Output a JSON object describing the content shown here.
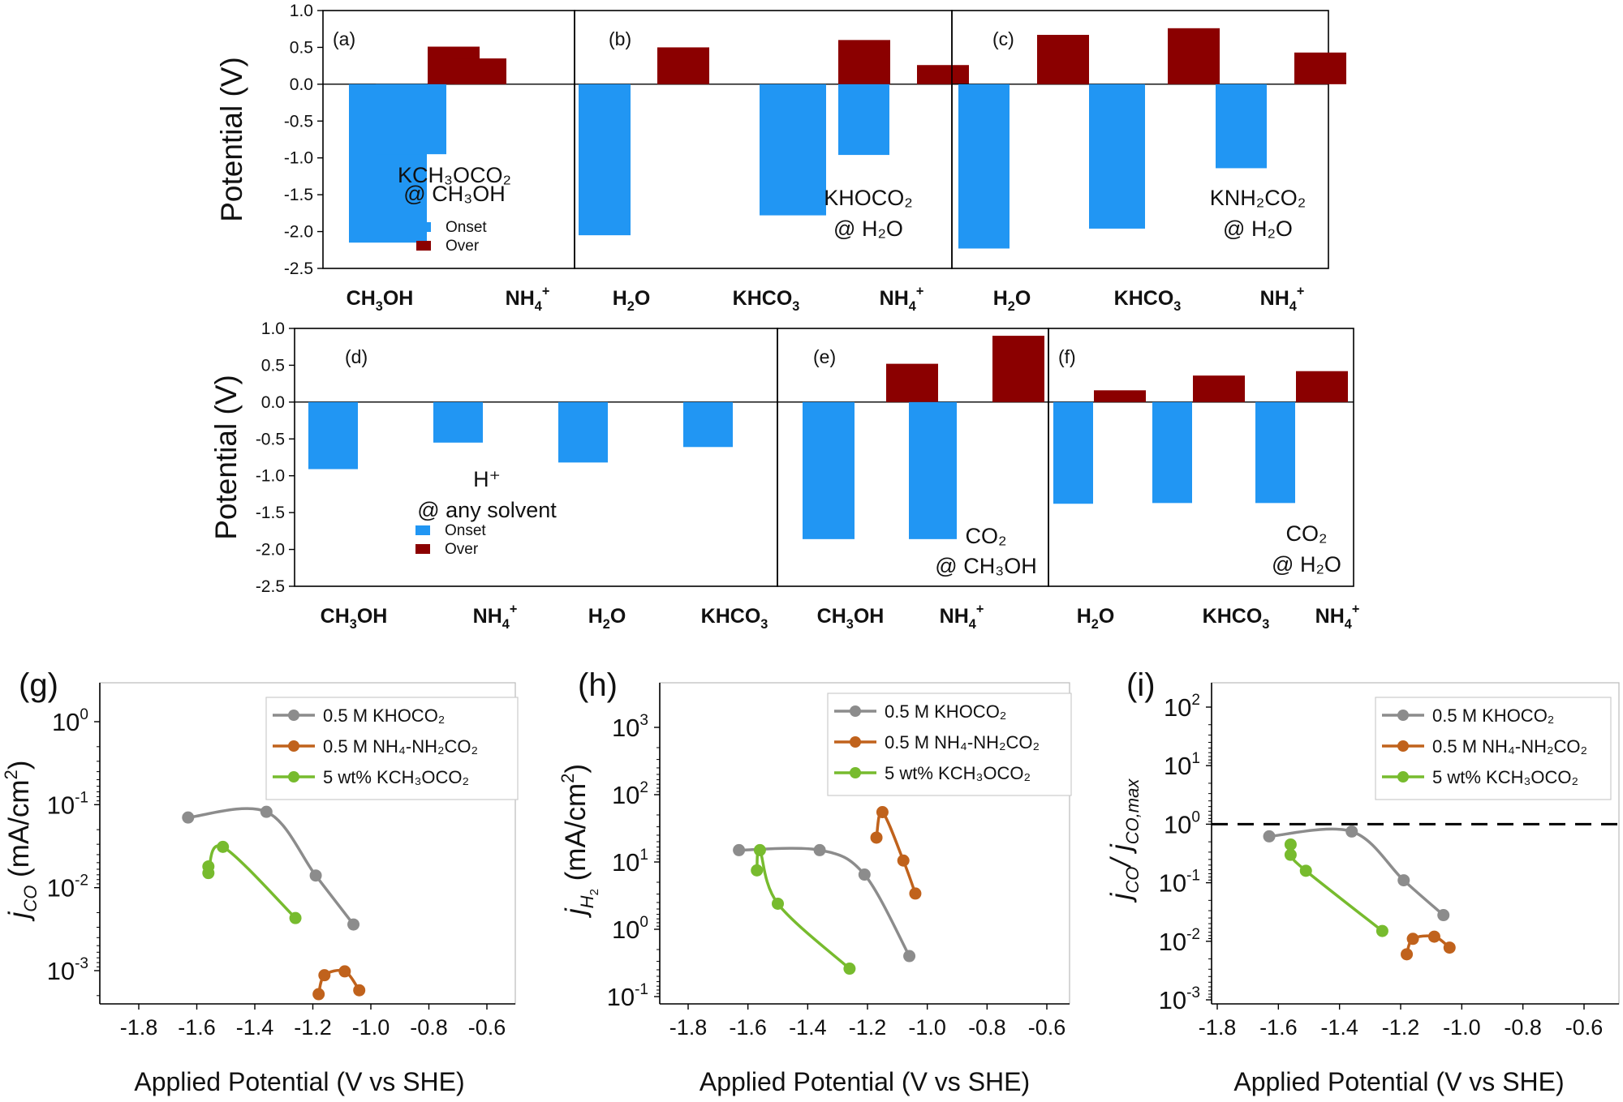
{
  "colors": {
    "onset": "#2196f3",
    "over": "#8b0000",
    "khoco2": "#8c8c8c",
    "nh4": "#c0621c",
    "kch3oco2": "#77bb2e",
    "axis": "#000000",
    "dashed": "#000000"
  },
  "chart_data": [
    {
      "panel": "(a)",
      "type": "bar",
      "ylabel": "Potential (V)",
      "ylim": [
        -2.5,
        1.0
      ],
      "yticks": [
        "1.0",
        "0.5",
        "0.0",
        "-0.5",
        "-1.0",
        "-1.5",
        "-2.0",
        "-2.5"
      ],
      "categories": [
        "CH3OH",
        "NH4+"
      ],
      "category_labels": [
        {
          "base": "CH",
          "sub": "3",
          "tail": "OH",
          "sup": ""
        },
        {
          "base": "NH",
          "sub": "4",
          "tail": "",
          "sup": "+"
        }
      ],
      "series": [
        {
          "name": "Onset",
          "values": [
            -2.15,
            -0.95
          ]
        },
        {
          "name": "Over",
          "values": [
            0.51,
            0.35
          ]
        }
      ],
      "annotation": [
        "KCH₃OCO₂",
        "@ CH₃OH"
      ],
      "legend": [
        "Onset",
        "Over"
      ]
    },
    {
      "panel": "(b)",
      "type": "bar",
      "ylim": [
        -2.5,
        1.0
      ],
      "categories": [
        "H2O",
        "KHCO3",
        "NH4+"
      ],
      "category_labels": [
        {
          "base": "H",
          "sub": "2",
          "tail": "O",
          "sup": ""
        },
        {
          "base": "KHCO",
          "sub": "3",
          "tail": "",
          "sup": ""
        },
        {
          "base": "NH",
          "sub": "4",
          "tail": "",
          "sup": "+"
        }
      ],
      "series": [
        {
          "name": "Onset",
          "values": [
            -2.05,
            -1.78,
            -0.96
          ]
        },
        {
          "name": "Over",
          "values": [
            0.5,
            0.6,
            0.26
          ]
        }
      ],
      "annotation": [
        "KHOCO₂",
        "@ H₂O"
      ]
    },
    {
      "panel": "(c)",
      "type": "bar",
      "ylim": [
        -2.5,
        1.0
      ],
      "categories": [
        "H2O",
        "KHCO3",
        "NH4+"
      ],
      "category_labels": [
        {
          "base": "H",
          "sub": "2",
          "tail": "O",
          "sup": ""
        },
        {
          "base": "KHCO",
          "sub": "3",
          "tail": "",
          "sup": ""
        },
        {
          "base": "NH",
          "sub": "4",
          "tail": "",
          "sup": "+"
        }
      ],
      "series": [
        {
          "name": "Onset",
          "values": [
            -2.23,
            -1.96,
            -1.14
          ]
        },
        {
          "name": "Over",
          "values": [
            0.67,
            0.76,
            0.43
          ]
        }
      ],
      "annotation": [
        "KNH₂CO₂",
        "@ H₂O"
      ]
    },
    {
      "panel": "(d)",
      "type": "bar",
      "ylabel": "Potential (V)",
      "ylim": [
        -2.5,
        1.0
      ],
      "yticks": [
        "1.0",
        "0.5",
        "0.0",
        "-0.5",
        "-1.0",
        "-1.5",
        "-2.0",
        "-2.5"
      ],
      "categories": [
        "CH3OH",
        "NH4+",
        "H2O",
        "KHCO3"
      ],
      "category_labels": [
        {
          "base": "CH",
          "sub": "3",
          "tail": "OH",
          "sup": ""
        },
        {
          "base": "NH",
          "sub": "4",
          "tail": "",
          "sup": "+"
        },
        {
          "base": "H",
          "sub": "2",
          "tail": "O",
          "sup": ""
        },
        {
          "base": "KHCO",
          "sub": "3",
          "tail": "",
          "sup": ""
        }
      ],
      "series": [
        {
          "name": "Onset",
          "values": [
            -0.91,
            -0.55,
            -0.82,
            -0.61
          ]
        }
      ],
      "annotation": [
        "H⁺",
        "@ any solvent"
      ],
      "legend": [
        "Onset",
        "Over"
      ]
    },
    {
      "panel": "(e)",
      "type": "bar",
      "ylim": [
        -2.5,
        1.0
      ],
      "categories": [
        "CH3OH",
        "NH4+"
      ],
      "category_labels": [
        {
          "base": "CH",
          "sub": "3",
          "tail": "OH",
          "sup": ""
        },
        {
          "base": "NH",
          "sub": "4",
          "tail": "",
          "sup": "+"
        }
      ],
      "series": [
        {
          "name": "Onset",
          "values": [
            -1.86,
            -1.86
          ]
        },
        {
          "name": "Over",
          "values": [
            0.52,
            0.9
          ]
        }
      ],
      "annotation": [
        "CO₂",
        "@ CH₃OH"
      ]
    },
    {
      "panel": "(f)",
      "type": "bar",
      "ylim": [
        -2.5,
        1.0
      ],
      "categories": [
        "H2O",
        "KHCO3",
        "NH4+"
      ],
      "category_labels": [
        {
          "base": "H",
          "sub": "2",
          "tail": "O",
          "sup": ""
        },
        {
          "base": "KHCO",
          "sub": "3",
          "tail": "",
          "sup": ""
        },
        {
          "base": "NH",
          "sub": "4",
          "tail": "",
          "sup": "+"
        }
      ],
      "series": [
        {
          "name": "Onset",
          "values": [
            -1.38,
            -1.37,
            -1.37
          ]
        },
        {
          "name": "Over",
          "values": [
            0.16,
            0.36,
            0.42
          ]
        }
      ],
      "annotation": [
        "CO₂",
        "@ H₂O"
      ]
    },
    {
      "panel": "(g)",
      "type": "scatter",
      "yscale": "log",
      "ylim": [
        0.0005,
        2
      ],
      "xlim": [
        -1.8,
        -0.5
      ],
      "xticks": [
        -1.8,
        -1.6,
        -1.4,
        -1.2,
        -1.0,
        -0.8,
        -0.6
      ],
      "yticks_exp": [
        0,
        -1,
        -2,
        -3
      ],
      "xlabel": "Applied Potential (V vs SHE)",
      "ylabel": {
        "base": "j",
        "sub": "CO",
        "tail": " (mA/cm",
        "sup": "2",
        "end": ")"
      },
      "series": [
        {
          "name": "0.5 M KHOCO₂",
          "x": [
            -1.63,
            -1.36,
            -1.19,
            -1.06
          ],
          "y": [
            0.07,
            0.082,
            0.014,
            0.0036
          ]
        },
        {
          "name": "0.5 M NH₄-NH₂CO₂",
          "x": [
            -1.18,
            -1.16,
            -1.09,
            -1.04
          ],
          "y": [
            0.00052,
            0.00088,
            0.00098,
            0.00058
          ]
        },
        {
          "name": "5 wt% KCH₃OCO₂",
          "x": [
            -1.56,
            -1.56,
            -1.51,
            -1.26
          ],
          "y": [
            0.018,
            0.015,
            0.031,
            0.0043
          ]
        }
      ]
    },
    {
      "panel": "(h)",
      "type": "scatter",
      "yscale": "log",
      "ylim": [
        0.1,
        5000
      ],
      "xlim": [
        -1.8,
        -0.5
      ],
      "xticks": [
        -1.8,
        -1.6,
        -1.4,
        -1.2,
        -1.0,
        -0.8,
        -0.6
      ],
      "yticks_exp": [
        3,
        2,
        1,
        0,
        -1
      ],
      "xlabel": "Applied Potential (V vs SHE)",
      "ylabel": {
        "base": "j",
        "sub": "H2",
        "tail": " (mA/cm",
        "sup": "2",
        "end": ")"
      },
      "series": [
        {
          "name": "0.5 M KHOCO₂",
          "x": [
            -1.63,
            -1.36,
            -1.21,
            -1.06
          ],
          "y": [
            15,
            15,
            6.5,
            0.4
          ]
        },
        {
          "name": "0.5 M NH₄-NH₂CO₂",
          "x": [
            -1.17,
            -1.15,
            -1.08,
            -1.04
          ],
          "y": [
            23,
            55,
            10.5,
            3.4
          ]
        },
        {
          "name": "5 wt% KCH₃OCO₂",
          "x": [
            -1.56,
            -1.57,
            -1.5,
            -1.26
          ],
          "y": [
            15,
            7.5,
            2.4,
            0.26
          ]
        }
      ]
    },
    {
      "panel": "(i)",
      "type": "scatter",
      "yscale": "log",
      "ylim": [
        0.001,
        200
      ],
      "xlim": [
        -1.8,
        -0.5
      ],
      "xticks": [
        -1.8,
        -1.6,
        -1.4,
        -1.2,
        -1.0,
        -0.8,
        -0.6
      ],
      "yticks_exp": [
        2,
        1,
        0,
        -1,
        -2,
        -3
      ],
      "xlabel": "Applied Potential (V vs SHE)",
      "ylabel": {
        "base": "j",
        "sub": "CO",
        "tail": "/ j",
        "sub2": "CO,max"
      },
      "reference_line_y": 1.0,
      "series": [
        {
          "name": "0.5 M KHOCO₂",
          "x": [
            -1.63,
            -1.36,
            -1.19,
            -1.06
          ],
          "y": [
            0.62,
            0.75,
            0.11,
            0.028
          ]
        },
        {
          "name": "0.5 M NH₄-NH₂CO₂",
          "x": [
            -1.18,
            -1.16,
            -1.09,
            -1.04
          ],
          "y": [
            0.006,
            0.011,
            0.012,
            0.0078
          ]
        },
        {
          "name": "5 wt% KCH₃OCO₂",
          "x": [
            -1.56,
            -1.56,
            -1.51,
            -1.26
          ],
          "y": [
            0.45,
            0.3,
            0.16,
            0.015
          ]
        }
      ]
    }
  ]
}
